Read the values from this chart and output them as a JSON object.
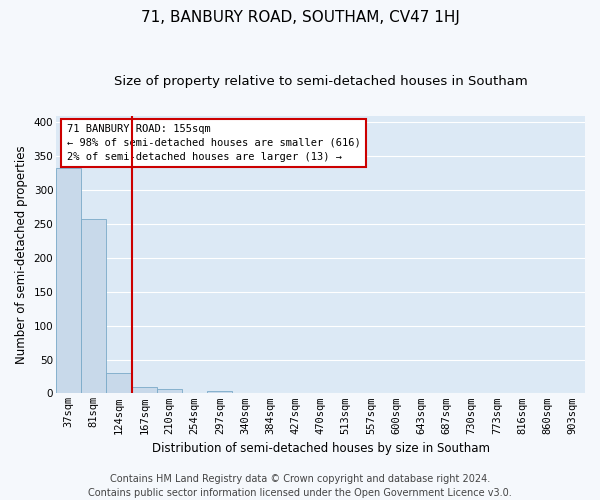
{
  "title": "71, BANBURY ROAD, SOUTHAM, CV47 1HJ",
  "subtitle": "Size of property relative to semi-detached houses in Southam",
  "xlabel": "Distribution of semi-detached houses by size in Southam",
  "ylabel": "Number of semi-detached properties",
  "categories": [
    "37sqm",
    "81sqm",
    "124sqm",
    "167sqm",
    "210sqm",
    "254sqm",
    "297sqm",
    "340sqm",
    "384sqm",
    "427sqm",
    "470sqm",
    "513sqm",
    "557sqm",
    "600sqm",
    "643sqm",
    "687sqm",
    "730sqm",
    "773sqm",
    "816sqm",
    "860sqm",
    "903sqm"
  ],
  "values": [
    333,
    258,
    30,
    9,
    7,
    0,
    4,
    0,
    0,
    0,
    0,
    0,
    0,
    0,
    0,
    0,
    0,
    0,
    0,
    0,
    0
  ],
  "bar_color": "#c8d9ea",
  "bar_edge_color": "#7aaac8",
  "vline_x": 2.5,
  "vline_color": "#cc0000",
  "annotation_title": "71 BANBURY ROAD: 155sqm",
  "annotation_line1": "← 98% of semi-detached houses are smaller (616)",
  "annotation_line2": "2% of semi-detached houses are larger (13) →",
  "annotation_box_color": "#cc0000",
  "annotation_bg": "#ffffff",
  "footer1": "Contains HM Land Registry data © Crown copyright and database right 2024.",
  "footer2": "Contains public sector information licensed under the Open Government Licence v3.0.",
  "ylim": [
    0,
    410
  ],
  "yticks": [
    0,
    50,
    100,
    150,
    200,
    250,
    300,
    350,
    400
  ],
  "plot_bg_color": "#dce9f5",
  "fig_bg_color": "#f5f8fc",
  "grid_color": "#ffffff",
  "title_fontsize": 11,
  "subtitle_fontsize": 9.5,
  "axis_label_fontsize": 8.5,
  "tick_fontsize": 7.5,
  "footer_fontsize": 7
}
